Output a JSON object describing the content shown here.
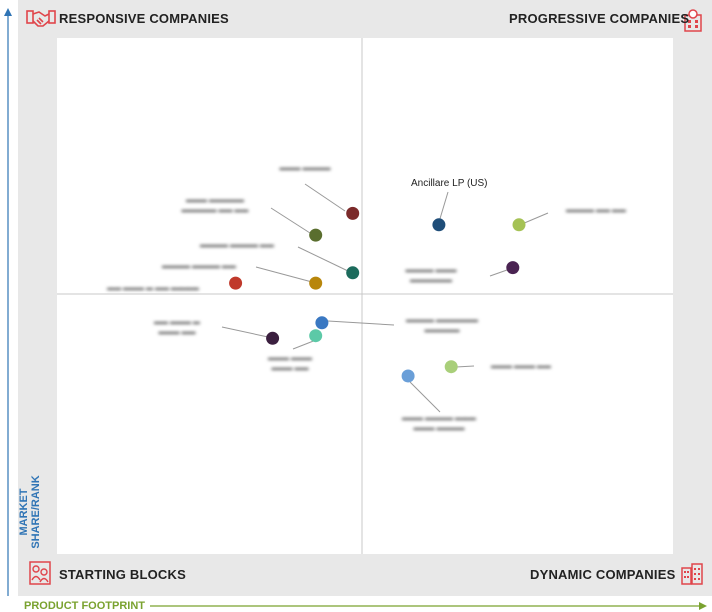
{
  "quadrants": {
    "top_left": "RESPONSIVE COMPANIES",
    "top_right": "PROGRESSIVE COMPANIES",
    "bottom_left": "STARTING BLOCKS",
    "bottom_right": "DYNAMIC COMPANIES"
  },
  "axes": {
    "y_label": "MARKET SHARE/RANK",
    "x_label": "PRODUCT FOOTPRINT"
  },
  "icons": {
    "top_left": "handshake-icon",
    "top_right": "building-icon",
    "bottom_left": "people-icon",
    "bottom_right": "city-icon"
  },
  "colors": {
    "icon_red": "#e0454b",
    "y_axis": "#2f74b5",
    "x_axis": "#7aa22f",
    "frame": "#e8e8e8"
  },
  "chart_data": {
    "type": "scatter",
    "title": "",
    "xlabel": "PRODUCT FOOTPRINT",
    "ylabel": "MARKET SHARE/RANK",
    "points": [
      {
        "label": "Ancillare LP (US)",
        "x": 0.62,
        "y": 0.638,
        "color": "#1f4e79"
      },
      {
        "label": "",
        "x": 0.75,
        "y": 0.638,
        "color": "#a5c255"
      },
      {
        "label": "",
        "x": 0.48,
        "y": 0.66,
        "color": "#7b2a2a"
      },
      {
        "label": "",
        "x": 0.42,
        "y": 0.618,
        "color": "#5a6e2e"
      },
      {
        "label": "",
        "x": 0.48,
        "y": 0.545,
        "color": "#1c6b5c"
      },
      {
        "label": "",
        "x": 0.42,
        "y": 0.525,
        "color": "#b8860b"
      },
      {
        "label": "",
        "x": 0.29,
        "y": 0.525,
        "color": "#c0392b"
      },
      {
        "label": "",
        "x": 0.74,
        "y": 0.555,
        "color": "#4a2352"
      },
      {
        "label": "",
        "x": 0.43,
        "y": 0.448,
        "color": "#3a78c2"
      },
      {
        "label": "",
        "x": 0.42,
        "y": 0.423,
        "color": "#5cc9a7"
      },
      {
        "label": "",
        "x": 0.35,
        "y": 0.418,
        "color": "#3b1f3f"
      },
      {
        "label": "",
        "x": 0.64,
        "y": 0.363,
        "color": "#a9cf7a"
      },
      {
        "label": "",
        "x": 0.57,
        "y": 0.345,
        "color": "#6a9fd8"
      }
    ]
  }
}
